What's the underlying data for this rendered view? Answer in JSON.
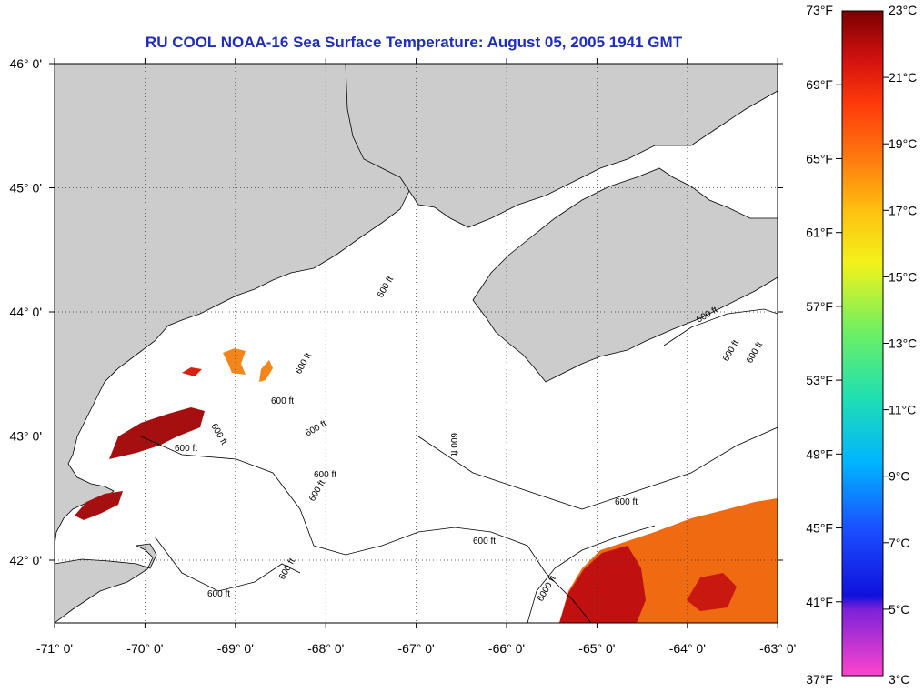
{
  "title": "RU COOL  NOAA-16  Sea Surface Temperature:  August 05, 2005 1941 GMT",
  "colors": {
    "title": "#1f2db8",
    "land": "#cccccc",
    "ocean": "#ffffff",
    "warm_dark": "#a50f0f",
    "warm_red": "#d8200f",
    "warm_orange": "#f06a12",
    "orange": "#f3851a"
  },
  "map": {
    "lat_labels": [
      "46° 0'",
      "45° 0'",
      "44° 0'",
      "43° 0'",
      "42° 0'"
    ],
    "lon_labels": [
      "-71° 0'",
      "-70° 0'",
      "-69° 0'",
      "-68° 0'",
      "-67° 0'",
      "-66° 0'",
      "-65° 0'",
      "-64° 0'",
      "-63° 0'"
    ],
    "lat_range": [
      41.5,
      46.05
    ],
    "lon_range": [
      -71,
      -63
    ],
    "contour_label": "600 ft",
    "contour_label_deep": "6000 ft"
  },
  "colorbar": {
    "fahrenheit_labels": [
      "73°F",
      "69°F",
      "65°F",
      "61°F",
      "57°F",
      "53°F",
      "49°F",
      "45°F",
      "41°F",
      "37°F"
    ],
    "celsius_labels": [
      "23°C",
      "21°C",
      "19°C",
      "17°C",
      "15°C",
      "13°C",
      "11°C",
      "9°C",
      "7°C",
      "5°C",
      "3°C"
    ],
    "range_c": [
      3,
      23
    ]
  }
}
